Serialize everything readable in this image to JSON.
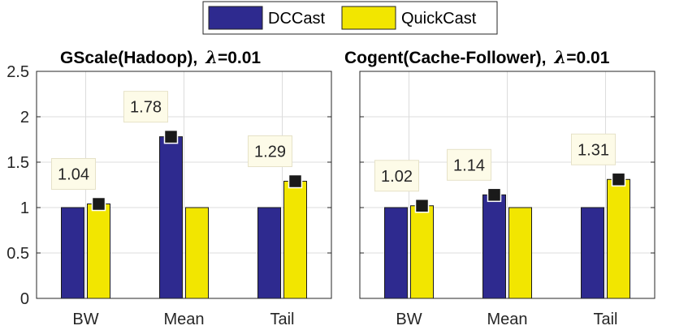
{
  "legend": {
    "entries": [
      "DCCast",
      "QuickCast"
    ],
    "colors": [
      "#2e2a8f",
      "#f2e600"
    ]
  },
  "chart_data": [
    {
      "type": "bar",
      "title": "GScale(Hadoop),",
      "lambda_symbol": "λ",
      "lambda_value": "=0.01",
      "categories": [
        "BW",
        "Mean",
        "Tail"
      ],
      "series": [
        {
          "name": "DCCast",
          "values": [
            1,
            1.78,
            1
          ]
        },
        {
          "name": "QuickCast",
          "values": [
            1.04,
            1,
            1.29
          ]
        }
      ],
      "ylim": [
        0,
        2.5
      ],
      "yticks": [
        0,
        0.5,
        1,
        1.5,
        2,
        2.5
      ],
      "ytick_labels": [
        "0",
        "0.5",
        "1",
        "1.5",
        "2",
        "2.5"
      ],
      "grid": true,
      "annotations": [
        {
          "text": "1.04",
          "category": "BW",
          "series": "QuickCast",
          "value": 1.04
        },
        {
          "text": "1.78",
          "category": "Mean",
          "series": "DCCast",
          "value": 1.78
        },
        {
          "text": "1.29",
          "category": "Tail",
          "series": "QuickCast",
          "value": 1.29
        }
      ]
    },
    {
      "type": "bar",
      "title": "Cogent(Cache-Follower),",
      "lambda_symbol": "λ",
      "lambda_value": "=0.01",
      "categories": [
        "BW",
        "Mean",
        "Tail"
      ],
      "series": [
        {
          "name": "DCCast",
          "values": [
            1,
            1.14,
            1
          ]
        },
        {
          "name": "QuickCast",
          "values": [
            1.02,
            1,
            1.31
          ]
        }
      ],
      "ylim": [
        0,
        2.5
      ],
      "yticks": [
        0,
        0.5,
        1,
        1.5,
        2,
        2.5
      ],
      "ytick_labels": [
        "",
        "",
        "",
        "",
        "",
        ""
      ],
      "grid": true,
      "annotations": [
        {
          "text": "1.02",
          "category": "BW",
          "series": "QuickCast",
          "value": 1.02
        },
        {
          "text": "1.14",
          "category": "Mean",
          "series": "DCCast",
          "value": 1.14
        },
        {
          "text": "1.31",
          "category": "Tail",
          "series": "QuickCast",
          "value": 1.31
        }
      ]
    }
  ]
}
